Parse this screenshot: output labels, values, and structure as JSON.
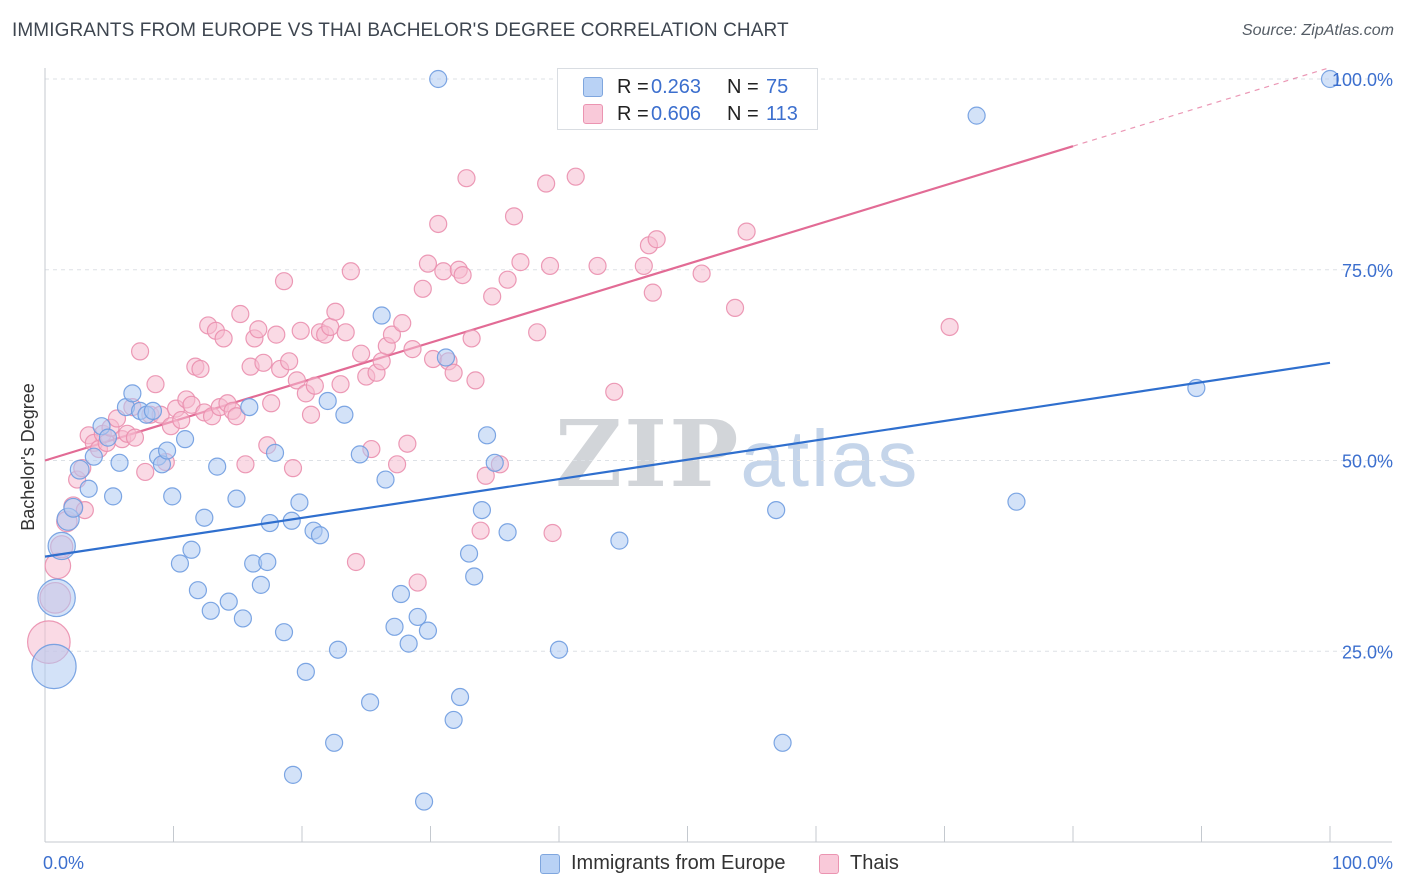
{
  "title": "IMMIGRANTS FROM EUROPE VS THAI BACHELOR'S DEGREE CORRELATION CHART",
  "source": "Source: ZipAtlas.com",
  "watermark": {
    "zip": "ZIP",
    "atlas": "atlas"
  },
  "legend": {
    "series": [
      {
        "name": "Immigrants from Europe",
        "r_label": "R =",
        "r": "0.263",
        "n_label": "N =",
        "n": "75",
        "fill": "#aecbf2",
        "stroke": "#7fa6de"
      },
      {
        "name": "Thais",
        "r_label": "R =",
        "r": "0.606",
        "n_label": "N =",
        "n": "113",
        "fill": "#f6bcd0",
        "stroke": "#eb94b1"
      }
    ]
  },
  "colors": {
    "blue_fill": "#aecbf2",
    "blue_stroke": "#6f9ce0",
    "blue_line": "#2f6fce",
    "pink_fill": "#f6bcd0",
    "pink_stroke": "#ea8fae",
    "pink_line": "#e26b95",
    "axis_text": "#3c6fce",
    "grid": "#dde1e6"
  },
  "chart_data": {
    "type": "scatter",
    "title": "IMMIGRANTS FROM EUROPE VS THAI BACHELOR'S DEGREE CORRELATION CHART",
    "xlabel": "",
    "ylabel": "Bachelor's Degree",
    "xlim": [
      0,
      100
    ],
    "ylim": [
      0,
      103
    ],
    "x_tick_labels": [
      "0.0%",
      "100.0%"
    ],
    "y_ticks": [
      25,
      50,
      75,
      100
    ],
    "y_tick_labels": [
      "25.0%",
      "50.0%",
      "75.0%",
      "100.0%"
    ],
    "grid": true,
    "series": [
      {
        "name": "Immigrants from Europe",
        "color": "blue",
        "trend": {
          "x": [
            0,
            100
          ],
          "y": [
            37.4,
            62.8
          ],
          "dashed_extension": false
        },
        "points": [
          {
            "x": 0.7,
            "y": 23.0,
            "s": 2.6
          },
          {
            "x": 0.9,
            "y": 32.0,
            "s": 2.2
          },
          {
            "x": 1.3,
            "y": 38.8,
            "s": 1.6
          },
          {
            "x": 1.8,
            "y": 42.3,
            "s": 1.3
          },
          {
            "x": 2.2,
            "y": 43.8,
            "s": 1.1
          },
          {
            "x": 2.7,
            "y": 48.8,
            "s": 1.1
          },
          {
            "x": 3.4,
            "y": 46.3,
            "s": 1.0
          },
          {
            "x": 3.8,
            "y": 50.5,
            "s": 1.0
          },
          {
            "x": 4.4,
            "y": 54.5,
            "s": 1.0
          },
          {
            "x": 4.9,
            "y": 53.0,
            "s": 1.0
          },
          {
            "x": 5.3,
            "y": 45.3,
            "s": 1.0
          },
          {
            "x": 5.8,
            "y": 49.7,
            "s": 1.0
          },
          {
            "x": 6.3,
            "y": 57.0,
            "s": 1.0
          },
          {
            "x": 6.8,
            "y": 58.8,
            "s": 1.0
          },
          {
            "x": 7.4,
            "y": 56.5,
            "s": 1.0
          },
          {
            "x": 7.9,
            "y": 56.0,
            "s": 1.0
          },
          {
            "x": 8.4,
            "y": 56.5,
            "s": 1.0
          },
          {
            "x": 8.8,
            "y": 50.5,
            "s": 1.0
          },
          {
            "x": 9.1,
            "y": 49.5,
            "s": 1.0
          },
          {
            "x": 9.5,
            "y": 51.3,
            "s": 1.0
          },
          {
            "x": 9.9,
            "y": 45.3,
            "s": 1.0
          },
          {
            "x": 10.5,
            "y": 36.5,
            "s": 1.0
          },
          {
            "x": 10.9,
            "y": 52.8,
            "s": 1.0
          },
          {
            "x": 11.4,
            "y": 38.3,
            "s": 1.0
          },
          {
            "x": 11.9,
            "y": 33.0,
            "s": 1.0
          },
          {
            "x": 12.4,
            "y": 42.5,
            "s": 1.0
          },
          {
            "x": 12.9,
            "y": 30.3,
            "s": 1.0
          },
          {
            "x": 13.4,
            "y": 49.2,
            "s": 1.0
          },
          {
            "x": 14.3,
            "y": 31.5,
            "s": 1.0
          },
          {
            "x": 14.9,
            "y": 45.0,
            "s": 1.0
          },
          {
            "x": 15.4,
            "y": 29.3,
            "s": 1.0
          },
          {
            "x": 15.9,
            "y": 57.0,
            "s": 1.0
          },
          {
            "x": 16.2,
            "y": 36.5,
            "s": 1.0
          },
          {
            "x": 16.8,
            "y": 33.7,
            "s": 1.0
          },
          {
            "x": 17.3,
            "y": 36.7,
            "s": 1.0
          },
          {
            "x": 17.5,
            "y": 41.8,
            "s": 1.0
          },
          {
            "x": 17.9,
            "y": 51.0,
            "s": 1.0
          },
          {
            "x": 18.6,
            "y": 27.5,
            "s": 1.0
          },
          {
            "x": 19.2,
            "y": 42.1,
            "s": 1.0
          },
          {
            "x": 19.3,
            "y": 8.8,
            "s": 1.0
          },
          {
            "x": 19.8,
            "y": 44.5,
            "s": 1.0
          },
          {
            "x": 20.3,
            "y": 22.3,
            "s": 1.0
          },
          {
            "x": 20.9,
            "y": 40.8,
            "s": 1.0
          },
          {
            "x": 21.4,
            "y": 40.2,
            "s": 1.0
          },
          {
            "x": 22.0,
            "y": 57.8,
            "s": 1.0
          },
          {
            "x": 22.5,
            "y": 13.0,
            "s": 1.0
          },
          {
            "x": 22.8,
            "y": 25.2,
            "s": 1.0
          },
          {
            "x": 23.3,
            "y": 56.0,
            "s": 1.0
          },
          {
            "x": 24.5,
            "y": 50.8,
            "s": 1.0
          },
          {
            "x": 25.3,
            "y": 18.3,
            "s": 1.0
          },
          {
            "x": 26.2,
            "y": 69.0,
            "s": 1.0
          },
          {
            "x": 26.5,
            "y": 47.5,
            "s": 1.0
          },
          {
            "x": 27.2,
            "y": 28.2,
            "s": 1.0
          },
          {
            "x": 27.7,
            "y": 32.5,
            "s": 1.0
          },
          {
            "x": 28.3,
            "y": 26.0,
            "s": 1.0
          },
          {
            "x": 29.0,
            "y": 29.5,
            "s": 1.0
          },
          {
            "x": 29.5,
            "y": 5.3,
            "s": 1.0
          },
          {
            "x": 29.8,
            "y": 27.7,
            "s": 1.0
          },
          {
            "x": 30.6,
            "y": 100.0,
            "s": 1.0
          },
          {
            "x": 31.2,
            "y": 63.5,
            "s": 1.0
          },
          {
            "x": 31.8,
            "y": 16.0,
            "s": 1.0
          },
          {
            "x": 32.3,
            "y": 19.0,
            "s": 1.0
          },
          {
            "x": 33.0,
            "y": 37.8,
            "s": 1.0
          },
          {
            "x": 33.4,
            "y": 34.8,
            "s": 1.0
          },
          {
            "x": 34.0,
            "y": 43.5,
            "s": 1.0
          },
          {
            "x": 34.4,
            "y": 53.3,
            "s": 1.0
          },
          {
            "x": 35.0,
            "y": 49.7,
            "s": 1.0
          },
          {
            "x": 36.0,
            "y": 40.6,
            "s": 1.0
          },
          {
            "x": 40.0,
            "y": 25.2,
            "s": 1.0
          },
          {
            "x": 44.7,
            "y": 39.5,
            "s": 1.0
          },
          {
            "x": 56.9,
            "y": 43.5,
            "s": 1.0
          },
          {
            "x": 57.4,
            "y": 13.0,
            "s": 1.0
          },
          {
            "x": 72.5,
            "y": 95.2,
            "s": 1.0
          },
          {
            "x": 75.6,
            "y": 44.6,
            "s": 1.0
          },
          {
            "x": 89.6,
            "y": 59.5,
            "s": 1.0
          },
          {
            "x": 100.0,
            "y": 100.0,
            "s": 1.0
          }
        ]
      },
      {
        "name": "Thais",
        "color": "pink",
        "trend": {
          "x": [
            0,
            100
          ],
          "y": [
            50.0,
            101.5
          ],
          "solid_until_x": 80
        },
        "points": [
          {
            "x": 0.3,
            "y": 26.2,
            "s": 2.5
          },
          {
            "x": 0.8,
            "y": 32.0,
            "s": 1.8
          },
          {
            "x": 1.0,
            "y": 36.2,
            "s": 1.5
          },
          {
            "x": 1.3,
            "y": 38.7,
            "s": 1.3
          },
          {
            "x": 1.7,
            "y": 42.0,
            "s": 1.2
          },
          {
            "x": 2.2,
            "y": 44.0,
            "s": 1.1
          },
          {
            "x": 2.5,
            "y": 47.5,
            "s": 1.0
          },
          {
            "x": 3.1,
            "y": 43.5,
            "s": 1.0
          },
          {
            "x": 2.9,
            "y": 49.0,
            "s": 1.0
          },
          {
            "x": 3.4,
            "y": 53.3,
            "s": 1.0
          },
          {
            "x": 3.8,
            "y": 52.3,
            "s": 1.0
          },
          {
            "x": 4.2,
            "y": 51.5,
            "s": 1.0
          },
          {
            "x": 4.5,
            "y": 53.5,
            "s": 1.0
          },
          {
            "x": 4.8,
            "y": 52.3,
            "s": 1.0
          },
          {
            "x": 5.1,
            "y": 54.3,
            "s": 1.0
          },
          {
            "x": 5.6,
            "y": 55.5,
            "s": 1.0
          },
          {
            "x": 6.0,
            "y": 52.8,
            "s": 1.0
          },
          {
            "x": 6.4,
            "y": 53.5,
            "s": 1.0
          },
          {
            "x": 6.8,
            "y": 57.0,
            "s": 1.0
          },
          {
            "x": 7.0,
            "y": 53.0,
            "s": 1.0
          },
          {
            "x": 7.4,
            "y": 64.3,
            "s": 1.0
          },
          {
            "x": 7.8,
            "y": 48.5,
            "s": 1.0
          },
          {
            "x": 8.2,
            "y": 56.0,
            "s": 1.0
          },
          {
            "x": 8.6,
            "y": 60.0,
            "s": 1.0
          },
          {
            "x": 9.0,
            "y": 56.0,
            "s": 1.0
          },
          {
            "x": 9.4,
            "y": 49.8,
            "s": 1.0
          },
          {
            "x": 9.8,
            "y": 54.5,
            "s": 1.0
          },
          {
            "x": 10.2,
            "y": 56.8,
            "s": 1.0
          },
          {
            "x": 10.6,
            "y": 55.3,
            "s": 1.0
          },
          {
            "x": 11.0,
            "y": 58.0,
            "s": 1.0
          },
          {
            "x": 11.4,
            "y": 57.3,
            "s": 1.0
          },
          {
            "x": 11.7,
            "y": 62.3,
            "s": 1.0
          },
          {
            "x": 12.1,
            "y": 62.0,
            "s": 1.0
          },
          {
            "x": 12.4,
            "y": 56.3,
            "s": 1.0
          },
          {
            "x": 12.7,
            "y": 67.7,
            "s": 1.0
          },
          {
            "x": 13.0,
            "y": 55.8,
            "s": 1.0
          },
          {
            "x": 13.3,
            "y": 67.0,
            "s": 1.0
          },
          {
            "x": 13.6,
            "y": 57.0,
            "s": 1.0
          },
          {
            "x": 13.9,
            "y": 66.0,
            "s": 1.0
          },
          {
            "x": 14.2,
            "y": 57.5,
            "s": 1.0
          },
          {
            "x": 14.6,
            "y": 56.5,
            "s": 1.0
          },
          {
            "x": 14.9,
            "y": 55.8,
            "s": 1.0
          },
          {
            "x": 15.2,
            "y": 69.2,
            "s": 1.0
          },
          {
            "x": 15.6,
            "y": 49.5,
            "s": 1.0
          },
          {
            "x": 16.0,
            "y": 62.3,
            "s": 1.0
          },
          {
            "x": 16.3,
            "y": 66.0,
            "s": 1.0
          },
          {
            "x": 16.6,
            "y": 67.2,
            "s": 1.0
          },
          {
            "x": 17.0,
            "y": 62.8,
            "s": 1.0
          },
          {
            "x": 17.3,
            "y": 52.0,
            "s": 1.0
          },
          {
            "x": 17.6,
            "y": 57.5,
            "s": 1.0
          },
          {
            "x": 18.0,
            "y": 66.5,
            "s": 1.0
          },
          {
            "x": 18.3,
            "y": 62.0,
            "s": 1.0
          },
          {
            "x": 18.6,
            "y": 73.5,
            "s": 1.0
          },
          {
            "x": 19.0,
            "y": 63.0,
            "s": 1.0
          },
          {
            "x": 19.3,
            "y": 49.0,
            "s": 1.0
          },
          {
            "x": 19.6,
            "y": 60.5,
            "s": 1.0
          },
          {
            "x": 19.9,
            "y": 67.0,
            "s": 1.0
          },
          {
            "x": 20.3,
            "y": 58.8,
            "s": 1.0
          },
          {
            "x": 20.7,
            "y": 56.0,
            "s": 1.0
          },
          {
            "x": 21.0,
            "y": 59.8,
            "s": 1.0
          },
          {
            "x": 21.4,
            "y": 66.8,
            "s": 1.0
          },
          {
            "x": 21.8,
            "y": 66.5,
            "s": 1.0
          },
          {
            "x": 22.2,
            "y": 67.5,
            "s": 1.0
          },
          {
            "x": 22.6,
            "y": 69.5,
            "s": 1.0
          },
          {
            "x": 23.0,
            "y": 60.0,
            "s": 1.0
          },
          {
            "x": 23.4,
            "y": 66.8,
            "s": 1.0
          },
          {
            "x": 23.8,
            "y": 74.8,
            "s": 1.0
          },
          {
            "x": 24.2,
            "y": 36.7,
            "s": 1.0
          },
          {
            "x": 24.6,
            "y": 64.0,
            "s": 1.0
          },
          {
            "x": 25.0,
            "y": 61.0,
            "s": 1.0
          },
          {
            "x": 25.4,
            "y": 51.5,
            "s": 1.0
          },
          {
            "x": 25.8,
            "y": 61.5,
            "s": 1.0
          },
          {
            "x": 26.2,
            "y": 63.0,
            "s": 1.0
          },
          {
            "x": 26.6,
            "y": 65.0,
            "s": 1.0
          },
          {
            "x": 27.0,
            "y": 66.5,
            "s": 1.0
          },
          {
            "x": 27.4,
            "y": 49.5,
            "s": 1.0
          },
          {
            "x": 27.8,
            "y": 68.0,
            "s": 1.0
          },
          {
            "x": 28.2,
            "y": 52.2,
            "s": 1.0
          },
          {
            "x": 28.6,
            "y": 64.6,
            "s": 1.0
          },
          {
            "x": 29.0,
            "y": 34.0,
            "s": 1.0
          },
          {
            "x": 29.4,
            "y": 72.5,
            "s": 1.0
          },
          {
            "x": 29.8,
            "y": 75.8,
            "s": 1.0
          },
          {
            "x": 30.2,
            "y": 63.3,
            "s": 1.0
          },
          {
            "x": 30.6,
            "y": 81.0,
            "s": 1.0
          },
          {
            "x": 31.0,
            "y": 74.8,
            "s": 1.0
          },
          {
            "x": 31.4,
            "y": 63.0,
            "s": 1.0
          },
          {
            "x": 31.8,
            "y": 61.5,
            "s": 1.0
          },
          {
            "x": 32.2,
            "y": 75.0,
            "s": 1.0
          },
          {
            "x": 32.5,
            "y": 74.3,
            "s": 1.0
          },
          {
            "x": 32.8,
            "y": 87.0,
            "s": 1.0
          },
          {
            "x": 33.2,
            "y": 66.0,
            "s": 1.0
          },
          {
            "x": 33.5,
            "y": 60.5,
            "s": 1.0
          },
          {
            "x": 33.9,
            "y": 40.8,
            "s": 1.0
          },
          {
            "x": 34.3,
            "y": 48.0,
            "s": 1.0
          },
          {
            "x": 34.8,
            "y": 71.5,
            "s": 1.0
          },
          {
            "x": 35.4,
            "y": 49.5,
            "s": 1.0
          },
          {
            "x": 36.0,
            "y": 73.7,
            "s": 1.0
          },
          {
            "x": 36.5,
            "y": 82.0,
            "s": 1.0
          },
          {
            "x": 37.0,
            "y": 76.0,
            "s": 1.0
          },
          {
            "x": 38.3,
            "y": 66.8,
            "s": 1.0
          },
          {
            "x": 39.0,
            "y": 86.3,
            "s": 1.0
          },
          {
            "x": 39.3,
            "y": 75.5,
            "s": 1.0
          },
          {
            "x": 39.5,
            "y": 40.5,
            "s": 1.0
          },
          {
            "x": 41.3,
            "y": 87.2,
            "s": 1.0
          },
          {
            "x": 43.0,
            "y": 75.5,
            "s": 1.0
          },
          {
            "x": 44.3,
            "y": 59.0,
            "s": 1.0
          },
          {
            "x": 46.6,
            "y": 75.5,
            "s": 1.0
          },
          {
            "x": 47.0,
            "y": 78.2,
            "s": 1.0
          },
          {
            "x": 47.3,
            "y": 72.0,
            "s": 1.0
          },
          {
            "x": 47.6,
            "y": 79.0,
            "s": 1.0
          },
          {
            "x": 51.1,
            "y": 74.5,
            "s": 1.0
          },
          {
            "x": 53.7,
            "y": 70.0,
            "s": 1.0
          },
          {
            "x": 54.6,
            "y": 80.0,
            "s": 1.0
          },
          {
            "x": 70.4,
            "y": 67.5,
            "s": 1.0
          }
        ]
      }
    ]
  }
}
